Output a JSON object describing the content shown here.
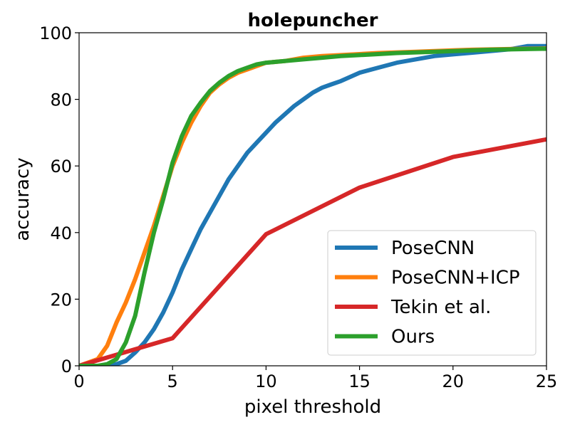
{
  "chart_data": {
    "type": "line",
    "title": "holepuncher",
    "xlabel": "pixel threshold",
    "ylabel": "accuracy",
    "xlim": [
      0,
      25
    ],
    "ylim": [
      0,
      100
    ],
    "xticks": [
      0,
      5,
      10,
      15,
      20,
      25
    ],
    "yticks": [
      0,
      20,
      40,
      60,
      80,
      100
    ],
    "grid": false,
    "legend_position": "bottom-right",
    "series": [
      {
        "name": "PoseCNN",
        "color": "#1f77b4",
        "x": [
          0,
          1.5,
          2,
          2.5,
          3,
          3.5,
          4,
          4.5,
          5,
          5.5,
          6,
          6.5,
          7,
          7.5,
          8,
          8.5,
          9,
          9.5,
          10,
          10.5,
          11,
          11.5,
          12,
          12.5,
          13,
          13.5,
          14,
          15,
          16,
          17,
          18,
          19,
          20,
          21,
          22,
          23,
          24,
          25
        ],
        "y": [
          0,
          0,
          0.5,
          1.5,
          4,
          7,
          11,
          16,
          22,
          29,
          35,
          41,
          46,
          51,
          56,
          60,
          64,
          67,
          70,
          73,
          75.5,
          78,
          80,
          82,
          83.5,
          84.5,
          85.5,
          88,
          89.5,
          91,
          92,
          93,
          93.5,
          94,
          94.5,
          95,
          96,
          96
        ]
      },
      {
        "name": "PoseCNN+ICP",
        "color": "#ff7f0e",
        "x": [
          0,
          1,
          1.5,
          2,
          2.5,
          3,
          3.5,
          4,
          4.5,
          5,
          5.5,
          6,
          6.5,
          7,
          7.5,
          8,
          8.5,
          9,
          9.5,
          10,
          11,
          12,
          13,
          14,
          15,
          16,
          17,
          18,
          19,
          20,
          21,
          22,
          23,
          24,
          25
        ],
        "y": [
          0,
          2,
          6,
          13,
          19,
          26,
          34,
          42,
          51,
          60,
          67,
          73,
          78,
          82,
          84.5,
          86.5,
          88,
          89,
          90,
          91,
          91.5,
          92.5,
          93,
          93.3,
          93.6,
          93.9,
          94.1,
          94.3,
          94.5,
          94.7,
          94.9,
          95,
          95.1,
          95.2,
          95.3
        ]
      },
      {
        "name": "Tekin et al.",
        "color": "#d62728",
        "x": [
          0,
          5,
          10,
          15,
          20,
          25
        ],
        "y": [
          0,
          8.3,
          39.5,
          53.5,
          62.7,
          68
        ]
      },
      {
        "name": "Ours",
        "color": "#2ca02c",
        "x": [
          0,
          1,
          1.5,
          2,
          2.5,
          3,
          3.5,
          4,
          4.5,
          5,
          5.5,
          6,
          6.5,
          7,
          7.5,
          8,
          8.5,
          9,
          9.5,
          10,
          11,
          12,
          13,
          14,
          15,
          16,
          17,
          18,
          19,
          20,
          21,
          22,
          23,
          24,
          25
        ],
        "y": [
          0,
          0,
          0.5,
          2,
          7,
          15,
          28,
          40,
          50,
          61,
          69,
          75,
          79,
          82.5,
          85,
          87,
          88.5,
          89.5,
          90.5,
          91,
          91.5,
          92,
          92.5,
          93,
          93.3,
          93.6,
          93.9,
          94.1,
          94.3,
          94.5,
          94.7,
          94.9,
          95,
          95.1,
          95.2
        ]
      }
    ]
  }
}
